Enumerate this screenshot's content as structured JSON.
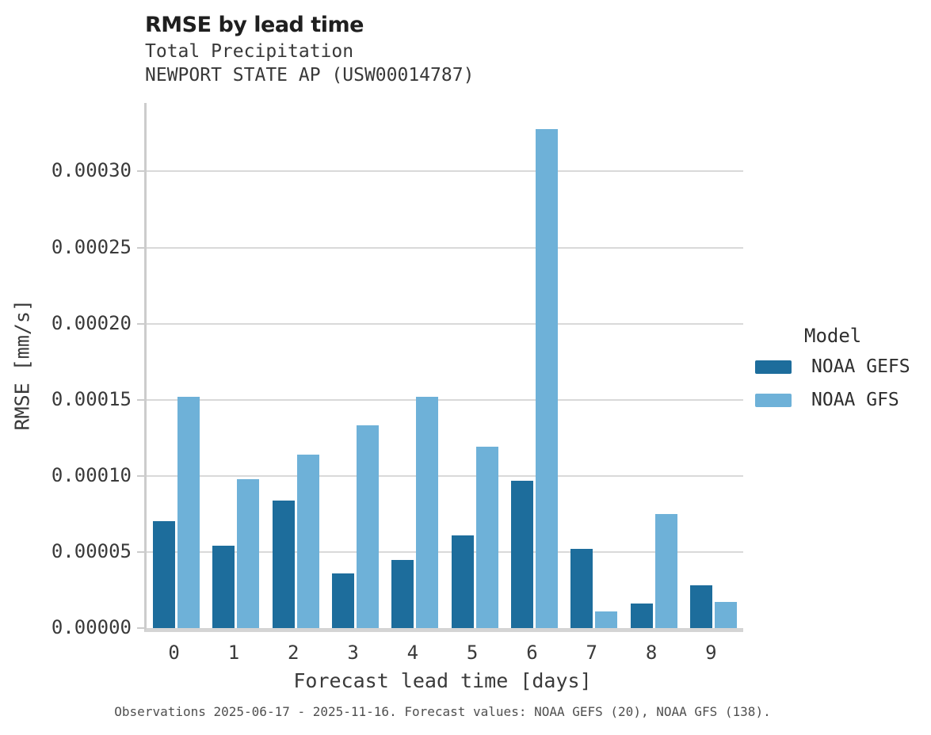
{
  "header": {
    "title": "RMSE by lead time",
    "subtitle1": "Total Precipitation",
    "subtitle2": "NEWPORT STATE AP (USW00014787)"
  },
  "chart_data": {
    "type": "bar",
    "title": "RMSE by lead time",
    "subtitle": "Total Precipitation — NEWPORT STATE AP (USW00014787)",
    "categories": [
      "0",
      "1",
      "2",
      "3",
      "4",
      "5",
      "6",
      "7",
      "8",
      "9"
    ],
    "series": [
      {
        "name": "NOAA GEFS",
        "color": "#1d6d9c",
        "values": [
          7e-05,
          5.4e-05,
          8.4e-05,
          3.6e-05,
          4.5e-05,
          6.1e-05,
          9.7e-05,
          5.2e-05,
          1.6e-05,
          2.8e-05
        ]
      },
      {
        "name": "NOAA GFS",
        "color": "#6eb1d8",
        "values": [
          0.000152,
          9.8e-05,
          0.000114,
          0.000133,
          0.000152,
          0.000119,
          0.000328,
          1.1e-05,
          7.5e-05,
          1.7e-05
        ]
      }
    ],
    "xlabel": "Forecast lead time [days]",
    "ylabel": "RMSE [mm/s]",
    "ylim": [
      0,
      0.000345
    ],
    "yticks": [
      0,
      5e-05,
      0.0001,
      0.00015,
      0.0002,
      0.00025,
      0.0003
    ],
    "ytick_labels": [
      "0.00000",
      "0.00005",
      "0.00010",
      "0.00015",
      "0.00020",
      "0.00025",
      "0.00030"
    ],
    "grid": true,
    "legend_position": "right",
    "legend_title": "Model"
  },
  "legend": {
    "title": "Model"
  },
  "caption": {
    "text": "Observations 2025-06-17 - 2025-11-16. Forecast values: NOAA GEFS (20), NOAA GFS (138)."
  }
}
